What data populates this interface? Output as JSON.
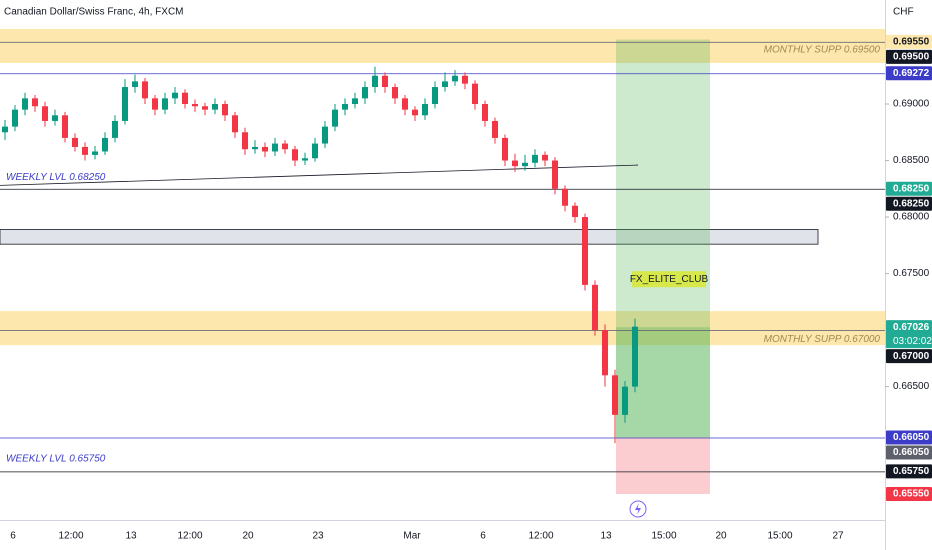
{
  "header": {
    "title": "Canadian Dollar/Swiss Franc, 4h, FXCM",
    "currency": "CHF"
  },
  "chart_data": {
    "type": "candlestick",
    "up_color": "#089981",
    "down_color": "#f23645",
    "ohlc": [
      [
        0.6875,
        0.6886,
        0.6868,
        0.688
      ],
      [
        0.688,
        0.6899,
        0.6876,
        0.6895
      ],
      [
        0.6895,
        0.691,
        0.689,
        0.6905
      ],
      [
        0.6905,
        0.6908,
        0.6893,
        0.6898
      ],
      [
        0.6898,
        0.6902,
        0.688,
        0.6885
      ],
      [
        0.6885,
        0.6895,
        0.6881,
        0.689
      ],
      [
        0.689,
        0.6893,
        0.6866,
        0.687
      ],
      [
        0.687,
        0.6874,
        0.6858,
        0.6862
      ],
      [
        0.6862,
        0.6866,
        0.685,
        0.6855
      ],
      [
        0.6855,
        0.6863,
        0.6851,
        0.6858
      ],
      [
        0.6858,
        0.6875,
        0.6855,
        0.687
      ],
      [
        0.687,
        0.689,
        0.6866,
        0.6885
      ],
      [
        0.6885,
        0.6922,
        0.6882,
        0.6915
      ],
      [
        0.6915,
        0.6926,
        0.691,
        0.692
      ],
      [
        0.692,
        0.6923,
        0.69,
        0.6905
      ],
      [
        0.6905,
        0.6908,
        0.689,
        0.6895
      ],
      [
        0.6895,
        0.691,
        0.6891,
        0.6905
      ],
      [
        0.6905,
        0.6915,
        0.69,
        0.691
      ],
      [
        0.691,
        0.6913,
        0.6896,
        0.69
      ],
      [
        0.69,
        0.6904,
        0.6893,
        0.6898
      ],
      [
        0.6898,
        0.6901,
        0.689,
        0.6895
      ],
      [
        0.6895,
        0.6905,
        0.6891,
        0.69
      ],
      [
        0.69,
        0.6903,
        0.6885,
        0.689
      ],
      [
        0.689,
        0.6893,
        0.687,
        0.6875
      ],
      [
        0.6875,
        0.6879,
        0.6855,
        0.686
      ],
      [
        0.686,
        0.6868,
        0.6856,
        0.6862
      ],
      [
        0.6862,
        0.6866,
        0.6853,
        0.6858
      ],
      [
        0.6858,
        0.687,
        0.6854,
        0.6865
      ],
      [
        0.6865,
        0.6868,
        0.6856,
        0.686
      ],
      [
        0.686,
        0.6863,
        0.6845,
        0.685
      ],
      [
        0.685,
        0.6857,
        0.6846,
        0.6852
      ],
      [
        0.6852,
        0.687,
        0.6849,
        0.6865
      ],
      [
        0.6865,
        0.6885,
        0.6861,
        0.688
      ],
      [
        0.688,
        0.69,
        0.6876,
        0.6895
      ],
      [
        0.6895,
        0.6905,
        0.689,
        0.69
      ],
      [
        0.69,
        0.691,
        0.6896,
        0.6905
      ],
      [
        0.6905,
        0.692,
        0.69,
        0.6915
      ],
      [
        0.6915,
        0.6933,
        0.691,
        0.6925
      ],
      [
        0.6925,
        0.6928,
        0.691,
        0.6915
      ],
      [
        0.6915,
        0.6918,
        0.69,
        0.6905
      ],
      [
        0.6905,
        0.6908,
        0.689,
        0.6895
      ],
      [
        0.6895,
        0.6898,
        0.6885,
        0.689
      ],
      [
        0.689,
        0.6905,
        0.6886,
        0.69
      ],
      [
        0.69,
        0.692,
        0.6896,
        0.6915
      ],
      [
        0.6915,
        0.6928,
        0.6911,
        0.692
      ],
      [
        0.692,
        0.693,
        0.6916,
        0.6925
      ],
      [
        0.6925,
        0.6928,
        0.6913,
        0.6918
      ],
      [
        0.6918,
        0.6921,
        0.6895,
        0.69
      ],
      [
        0.69,
        0.6903,
        0.688,
        0.6885
      ],
      [
        0.6885,
        0.6888,
        0.6865,
        0.687
      ],
      [
        0.687,
        0.6873,
        0.6845,
        0.685
      ],
      [
        0.685,
        0.6856,
        0.684,
        0.6845
      ],
      [
        0.6845,
        0.6855,
        0.6841,
        0.6848
      ],
      [
        0.6848,
        0.686,
        0.6844,
        0.6855
      ],
      [
        0.6855,
        0.6858,
        0.6845,
        0.685
      ],
      [
        0.685,
        0.6853,
        0.682,
        0.6825
      ],
      [
        0.6825,
        0.6828,
        0.6805,
        0.681
      ],
      [
        0.681,
        0.6813,
        0.6795,
        0.68
      ],
      [
        0.68,
        0.6803,
        0.6735,
        0.674
      ],
      [
        0.674,
        0.6744,
        0.6695,
        0.67
      ],
      [
        0.67,
        0.6705,
        0.665,
        0.666
      ],
      [
        0.666,
        0.6665,
        0.66,
        0.6625
      ],
      [
        0.6625,
        0.6655,
        0.6618,
        0.665
      ],
      [
        0.665,
        0.671,
        0.6645,
        0.6703
      ]
    ],
    "ylim": [
      0.6532,
      0.6992
    ],
    "yticks": [
      {
        "value": 0.69,
        "label": "0.69000"
      },
      {
        "value": 0.685,
        "label": "0.68500"
      },
      {
        "value": 0.68,
        "label": "0.68000"
      },
      {
        "value": 0.675,
        "label": "0.67500"
      },
      {
        "value": 0.665,
        "label": "0.66500"
      }
    ],
    "x_labels": [
      "6",
      "12:00",
      "13",
      "12:00",
      "20",
      "23",
      "Mar",
      "6",
      "12:00",
      "13",
      "15:00",
      "20",
      "15:00",
      "27"
    ],
    "zones": [
      {
        "range": [
          0.69363,
          0.69664
        ],
        "color": "#fde7ad"
      },
      {
        "range": [
          0.66867,
          0.67168
        ],
        "color": "#fde7ad"
      },
      {
        "range": [
          0.6776,
          0.6789
        ],
        "color": "#e1e3ea"
      }
    ],
    "levels": [
      {
        "value": 0.6955,
        "color": "#6a6d78"
      },
      {
        "value": 0.69272,
        "color": "#3c3cc8"
      },
      {
        "value": 0.6825,
        "color": "#131722"
      },
      {
        "value": 0.67,
        "color": "#6a6d78"
      },
      {
        "value": 0.6605,
        "color": "#3c3cc8"
      },
      {
        "value": 0.6575,
        "color": "#131722"
      }
    ],
    "trendline": {
      "values": [
        0.6828,
        0.6846
      ],
      "color": "#131722"
    },
    "annotations": [
      {
        "text": "MONTHLY SUPP 0.69500",
        "value": 0.6948,
        "side": "right",
        "color": "#a08a4c"
      },
      {
        "text": "MONTHLY SUPP 0.67000",
        "value": 0.6692,
        "side": "right",
        "color": "#a08a4c"
      },
      {
        "text": "WEEKLY LVL 0.68250",
        "value": 0.6835,
        "side": "left",
        "color": "#3c3cc8"
      },
      {
        "text": "WEEKLY LVL 0.65750",
        "value": 0.6586,
        "side": "left",
        "color": "#3c3cc8"
      }
    ],
    "position": {
      "target": 0.6957,
      "current": 0.67026,
      "entry": 0.6605,
      "stop": 0.6555,
      "label": "FX_ELITE_CLUB",
      "label_value": 0.6745
    },
    "price_tags": [
      {
        "value": 0.6955,
        "label": "0.69550",
        "color": "#fde7ad",
        "text_color": "#131722"
      },
      {
        "value": 0.695,
        "label": "0.69500",
        "color": "#131722",
        "text_color": "#ffffff"
      },
      {
        "value": 0.69272,
        "label": "0.69272",
        "color": "#3c3cc8",
        "text_color": "#ffffff"
      },
      {
        "value": 0.6825,
        "label": "0.68250",
        "color": "#22ab94",
        "text_color": "#ffffff"
      },
      {
        "value": 0.6825,
        "label": "0.68250",
        "color": "#131722",
        "text_color": "#ffffff"
      },
      {
        "value": 0.67026,
        "label": "0.67026",
        "sub": "03:02:02",
        "color": "#22ab94",
        "text_color": "#ffffff"
      },
      {
        "value": 0.67,
        "label": "0.67000",
        "color": "#131722",
        "text_color": "#ffffff"
      },
      {
        "value": 0.6605,
        "label": "0.66050",
        "color": "#3c3cc8",
        "text_color": "#ffffff"
      },
      {
        "value": 0.6605,
        "label": "0.66050",
        "color": "#5d606b",
        "text_color": "#ffffff"
      },
      {
        "value": 0.6575,
        "label": "0.65750",
        "color": "#131722",
        "text_color": "#ffffff"
      },
      {
        "value": 0.6555,
        "label": "0.65550",
        "color": "#f23645",
        "text_color": "#ffffff"
      }
    ]
  }
}
